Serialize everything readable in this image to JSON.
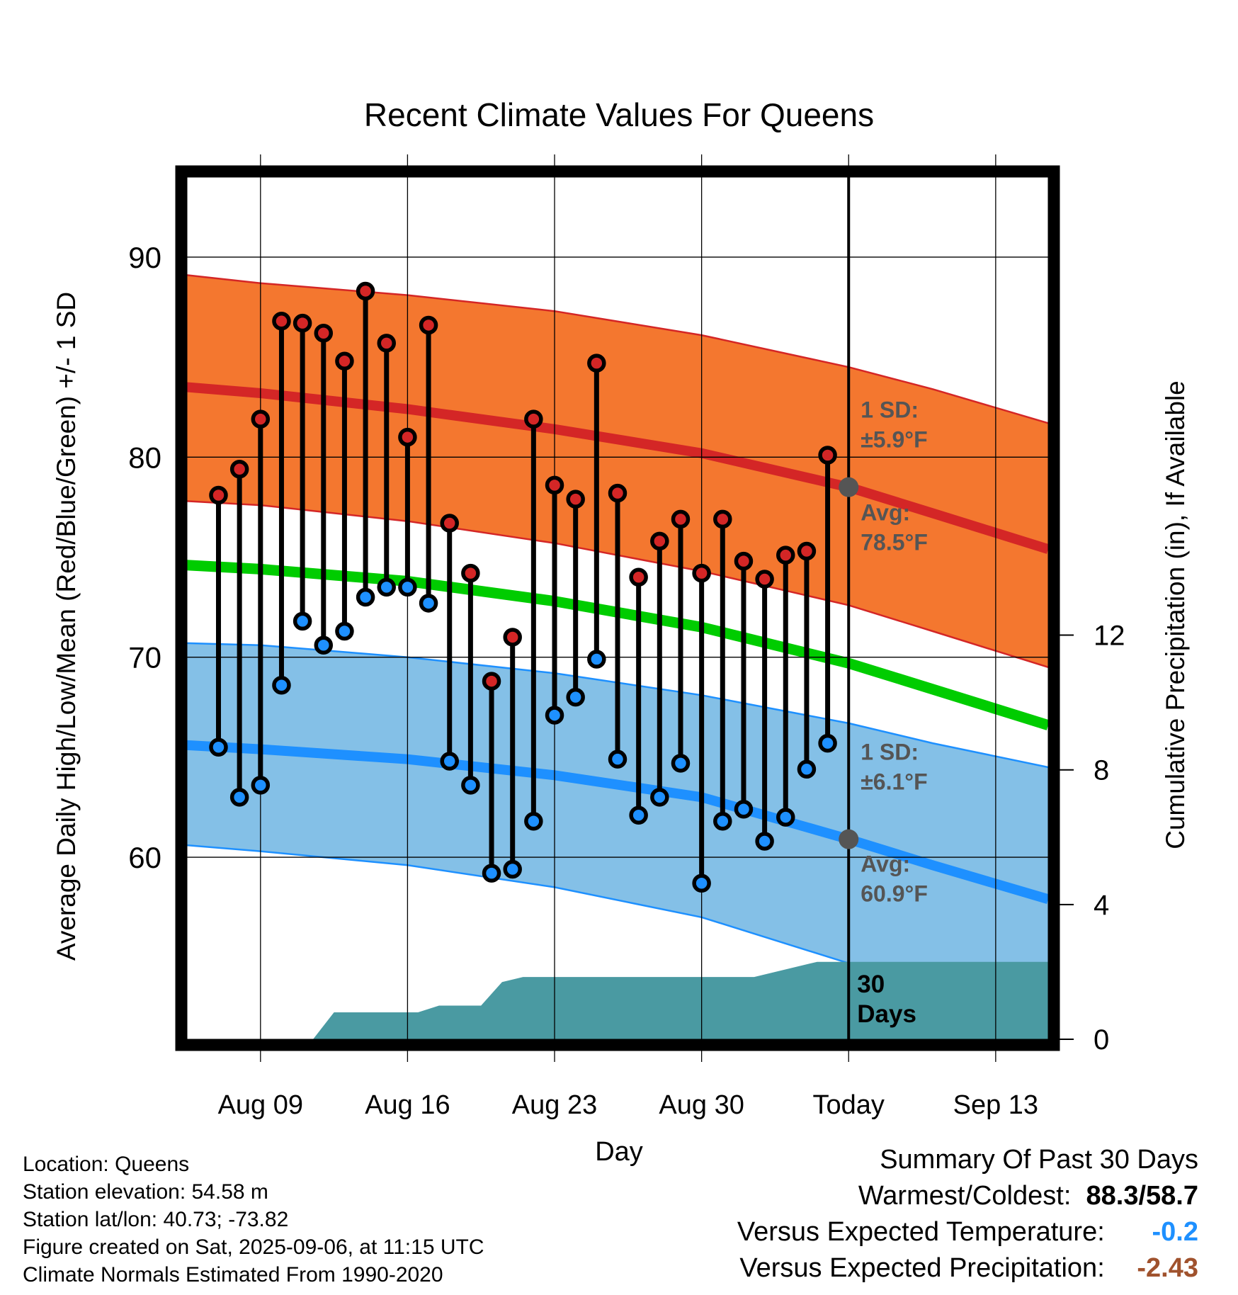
{
  "chart_data": {
    "type": "line",
    "title": "Recent Climate Values For Queens",
    "xlabel": "Day",
    "ylabel": "Average Daily High/Low/Mean (Red/Blue/Green) +/- 1 SD",
    "ylabel_right": "Cumulative Precipitation (in), If Available",
    "x_tick_labels": [
      "Aug 09",
      "Aug 16",
      "Aug 23",
      "Aug 30",
      "Today",
      "Sep 13"
    ],
    "x_tick_days": [
      3,
      10,
      17,
      24,
      31,
      38
    ],
    "xlim": [
      -0.5,
      40.5
    ],
    "ylim": [
      50.9,
      94.0
    ],
    "y_ticks": [
      60,
      70,
      80,
      90
    ],
    "y2lim": [
      0,
      25.6
    ],
    "y2_ticks": [
      0,
      4,
      8,
      12
    ],
    "grid": true,
    "today_day": 31,
    "normals_days": [
      -0.5,
      3,
      10,
      17,
      24,
      31,
      35,
      40.5
    ],
    "normal_high": [
      83.5,
      83.2,
      82.4,
      81.4,
      80.2,
      78.5,
      77.2,
      75.4
    ],
    "normal_high_upper": [
      89.1,
      88.7,
      88.1,
      87.3,
      86.1,
      84.5,
      83.4,
      81.7
    ],
    "normal_high_lower": [
      77.8,
      77.6,
      76.8,
      75.7,
      74.3,
      72.6,
      71.3,
      69.5
    ],
    "normal_mean": [
      74.6,
      74.4,
      73.8,
      72.8,
      71.5,
      69.7,
      68.4,
      66.6
    ],
    "normal_low": [
      65.6,
      65.4,
      64.9,
      64.1,
      63.0,
      60.9,
      59.6,
      57.9
    ],
    "normal_low_upper": [
      70.7,
      70.6,
      70.0,
      69.2,
      68.1,
      66.7,
      65.7,
      64.5
    ],
    "normal_low_lower": [
      60.6,
      60.3,
      59.6,
      58.5,
      57.0,
      54.7,
      53.3,
      51.3
    ],
    "days": [
      1,
      2,
      3,
      4,
      5,
      6,
      7,
      8,
      9,
      10,
      11,
      12,
      13,
      14,
      15,
      16,
      17,
      18,
      19,
      20,
      21,
      22,
      23,
      24,
      25,
      26,
      27,
      28,
      29,
      30
    ],
    "series": [
      {
        "name": "High",
        "values": [
          78.1,
          79.4,
          81.9,
          86.8,
          86.7,
          86.2,
          84.8,
          88.3,
          85.7,
          81.0,
          86.6,
          76.7,
          74.2,
          68.8,
          71.0,
          81.9,
          78.6,
          77.9,
          84.7,
          78.2,
          74.0,
          75.8,
          76.9,
          74.2,
          76.9,
          74.8,
          73.9,
          75.1,
          75.3,
          80.1
        ]
      },
      {
        "name": "Low",
        "values": [
          65.5,
          63.0,
          63.6,
          68.6,
          71.8,
          70.6,
          71.3,
          73.0,
          73.5,
          73.5,
          72.7,
          64.8,
          63.6,
          59.2,
          59.4,
          61.8,
          67.1,
          68.0,
          69.9,
          64.9,
          62.1,
          63.0,
          64.7,
          58.7,
          61.8,
          62.4,
          60.8,
          62.0,
          64.4,
          65.7
        ]
      }
    ],
    "precip_days": [
      5.5,
      6.5,
      9.5,
      10.5,
      11.5,
      13.5,
      14.5,
      15.5,
      23.5,
      25.5,
      26.5,
      29.5,
      30.5,
      40.5
    ],
    "precip_values": [
      0,
      0.8,
      0.8,
      0.8,
      1.0,
      1.0,
      1.7,
      1.85,
      1.85,
      1.85,
      1.85,
      2.3,
      2.3,
      2.3
    ],
    "annotations": {
      "high_sd_label": "1 SD:",
      "high_sd_value": "±5.9°F",
      "high_avg_label": "Avg:",
      "high_avg_value": "78.5°F",
      "low_sd_label": "1 SD:",
      "low_sd_value": "±6.1°F",
      "low_avg_label": "Avg:",
      "low_avg_value": "60.9°F",
      "period_number": "30",
      "period_unit": "Days"
    },
    "colors": {
      "high_band": "#f4772f",
      "high_line": "#d42626",
      "low_band": "#84c0e7",
      "low_line": "#1e90ff",
      "mean_line": "#00cc00",
      "precip_fill": "#4a9aa2",
      "high_marker": "#d42626",
      "low_marker": "#1e90ff",
      "avg_marker": "#555555",
      "annotation_text": "#555555"
    }
  },
  "footer": {
    "location": "Location: Queens",
    "elevation": "Station elevation: 54.58 m",
    "latlon": "Station lat/lon: 40.73; -73.82",
    "created": "Figure created on Sat, 2025-09-06, at 11:15 UTC",
    "normals": "Climate Normals Estimated From 1990-2020"
  },
  "summary": {
    "title": "Summary Of Past 30 Days",
    "warm_cold_label": "Warmest/Coldest:",
    "warm_cold_value": "88.3/58.7",
    "temp_label": "Versus Expected Temperature:",
    "temp_value": "-0.2",
    "precip_label": "Versus Expected Precipitation:",
    "precip_value": "-2.43"
  }
}
